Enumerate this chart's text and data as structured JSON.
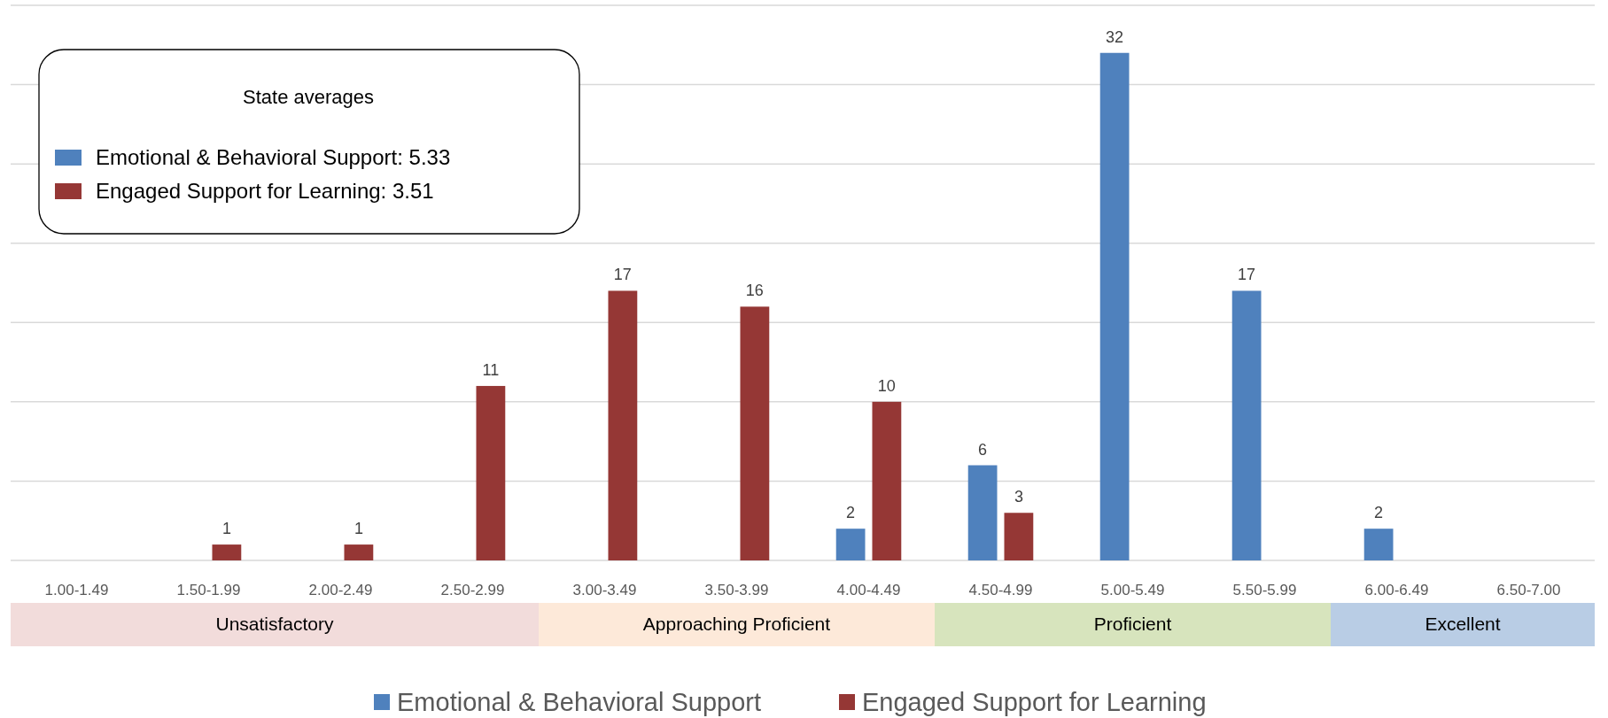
{
  "chart_data": {
    "type": "bar",
    "categories": [
      "1.00-1.49",
      "1.50-1.99",
      "2.00-2.49",
      "2.50-2.99",
      "3.00-3.49",
      "3.50-3.99",
      "4.00-4.49",
      "4.50-4.99",
      "5.00-5.49",
      "5.50-5.99",
      "6.00-6.49",
      "6.50-7.00"
    ],
    "series": [
      {
        "name": "Emotional & Behavioral Support",
        "color": "#4f81bd",
        "values": [
          null,
          null,
          null,
          null,
          null,
          null,
          2,
          6,
          32,
          17,
          2,
          null
        ]
      },
      {
        "name": "Engaged Support for Learning",
        "color": "#953735",
        "values": [
          null,
          1,
          1,
          11,
          17,
          16,
          10,
          3,
          null,
          null,
          null,
          null
        ]
      }
    ],
    "ylim": [
      0,
      35
    ],
    "yticks": [
      {
        "value": 0,
        "label": null
      },
      {
        "value": 5,
        "label": null
      },
      {
        "value": 10,
        "label": null
      },
      {
        "value": 15,
        "label": null
      },
      {
        "value": 20,
        "label": null
      },
      {
        "value": 25,
        "label": null
      },
      {
        "value": 30,
        "label": null
      },
      {
        "value": 35,
        "label": null
      }
    ],
    "tick_labels": "x",
    "grid": "y",
    "data_labels": true,
    "legend": "bottom",
    "annotations": [
      "State averages",
      "Emotional & Behavioral Support: 5.33",
      "Engaged Support for Learning: 3.51",
      "Unsatisfactory",
      "Approaching Proficient",
      "Proficient",
      "Excellent"
    ]
  }
}
